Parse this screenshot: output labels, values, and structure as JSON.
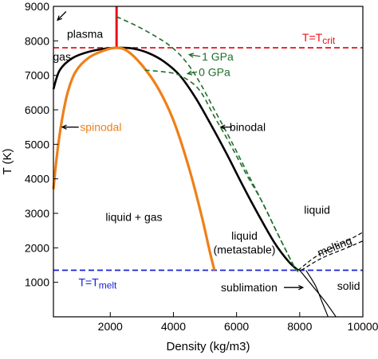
{
  "colors": {
    "binodal": "#000000",
    "spinodal": "#f07f17",
    "isobar": "#1f6f2a",
    "t_crit": "#e8101a",
    "t_melt": "#1a22d6",
    "axis": "#000000"
  },
  "chart_data": {
    "type": "line",
    "title": "",
    "xlabel": "Density (kg/m3)",
    "ylabel": "T (K)",
    "xlim": [
      200,
      10000
    ],
    "ylim": [
      0,
      9000
    ],
    "x_ticks": [
      2000,
      4000,
      6000,
      8000,
      10000
    ],
    "y_ticks": [
      1000,
      2000,
      3000,
      4000,
      5000,
      6000,
      7000,
      8000,
      9000
    ],
    "grid": false,
    "series": [
      {
        "name": "binodal",
        "style": "solid",
        "points": [
          [
            200,
            6600
          ],
          [
            400,
            7150
          ],
          [
            800,
            7500
          ],
          [
            1300,
            7680
          ],
          [
            1800,
            7770
          ],
          [
            2200,
            7800
          ],
          [
            2700,
            7780
          ],
          [
            3200,
            7650
          ],
          [
            3700,
            7400
          ],
          [
            4200,
            7000
          ],
          [
            4700,
            6350
          ],
          [
            5200,
            5550
          ],
          [
            5700,
            4700
          ],
          [
            6200,
            3800
          ],
          [
            6700,
            2950
          ],
          [
            7200,
            2150
          ],
          [
            7650,
            1600
          ],
          [
            7950,
            1350
          ]
        ]
      },
      {
        "name": "spinodal",
        "style": "solid",
        "points": [
          [
            200,
            3700
          ],
          [
            300,
            4600
          ],
          [
            450,
            5600
          ],
          [
            650,
            6500
          ],
          [
            900,
            7100
          ],
          [
            1300,
            7500
          ],
          [
            1800,
            7720
          ],
          [
            2200,
            7800
          ],
          [
            2550,
            7700
          ],
          [
            3000,
            7300
          ],
          [
            3500,
            6650
          ],
          [
            4000,
            5700
          ],
          [
            4500,
            4300
          ],
          [
            4900,
            2900
          ],
          [
            5150,
            1900
          ],
          [
            5300,
            1350
          ]
        ]
      },
      {
        "name": "1 GPa",
        "style": "dashed",
        "points": [
          [
            2200,
            8700
          ],
          [
            2800,
            8450
          ],
          [
            3400,
            8150
          ],
          [
            3900,
            7850
          ],
          [
            4350,
            7450
          ],
          [
            4800,
            6850
          ],
          [
            5300,
            6000
          ],
          [
            5800,
            5150
          ],
          [
            6300,
            4250
          ],
          [
            6800,
            3350
          ],
          [
            7200,
            2600
          ],
          [
            7550,
            1950
          ],
          [
            7800,
            1500
          ],
          [
            7950,
            1300
          ]
        ]
      },
      {
        "name": "0 GPa",
        "style": "dashed",
        "points": [
          [
            3100,
            7150
          ],
          [
            3700,
            7100
          ],
          [
            4200,
            7000
          ],
          [
            4800,
            6600
          ],
          [
            5300,
            5800
          ],
          [
            5800,
            5000
          ],
          [
            6300,
            4150
          ],
          [
            6800,
            3350
          ],
          [
            7200,
            2600
          ],
          [
            7550,
            1950
          ],
          [
            7850,
            1420
          ],
          [
            7950,
            1330
          ]
        ]
      },
      {
        "name": "melting",
        "style": "dashed",
        "points": [
          [
            7950,
            1350
          ],
          [
            8600,
            1800
          ],
          [
            9400,
            2150
          ],
          [
            10000,
            2450
          ]
        ]
      },
      {
        "name": "melting",
        "style": "dashed",
        "points": [
          [
            8050,
            1350
          ],
          [
            8700,
            1700
          ],
          [
            9500,
            2000
          ],
          [
            10000,
            2200
          ]
        ]
      },
      {
        "name": "sublimation",
        "style": "solid",
        "points": [
          [
            8000,
            1350
          ],
          [
            8400,
            900
          ],
          [
            8800,
            450
          ],
          [
            9150,
            0
          ]
        ]
      },
      {
        "name": "sublimation",
        "style": "solid",
        "points": [
          [
            8200,
            1350
          ],
          [
            8500,
            900
          ],
          [
            8700,
            450
          ],
          [
            8900,
            0
          ]
        ]
      }
    ],
    "reference_lines": [
      {
        "orientation": "horizontal",
        "value": 7800,
        "style": "dashed",
        "label": "T=T",
        "subscript": "crit"
      },
      {
        "orientation": "horizontal",
        "value": 1350,
        "style": "dashed",
        "label": "T=T",
        "subscript": "melt"
      }
    ],
    "critical_marker": {
      "x": 2200,
      "y_from": 7800,
      "y_to": 9000
    },
    "annotations": [
      {
        "text": "plasma",
        "x": 1200,
        "y": 8200
      },
      {
        "text": "gas",
        "x": 470,
        "y": 7550
      },
      {
        "text": "spinodal",
        "x": 1700,
        "y": 5500
      },
      {
        "text": "binodal",
        "x": 6350,
        "y": 5500
      },
      {
        "text": "liquid + gas",
        "x": 2750,
        "y": 2900
      },
      {
        "text": "liquid",
        "x": 6250,
        "y": 2350
      },
      {
        "text": "(metastable)",
        "x": 6250,
        "y": 1950
      },
      {
        "text": "liquid",
        "x": 8550,
        "y": 3100
      },
      {
        "text": "melting",
        "x": 9150,
        "y": 2050
      },
      {
        "text": "solid",
        "x": 9550,
        "y": 900
      },
      {
        "text": "sublimation",
        "x": 6400,
        "y": 850
      },
      {
        "text": "1 GPa",
        "x": 4900,
        "y": 7550
      },
      {
        "text": "0 GPa",
        "x": 4800,
        "y": 7100
      }
    ]
  }
}
